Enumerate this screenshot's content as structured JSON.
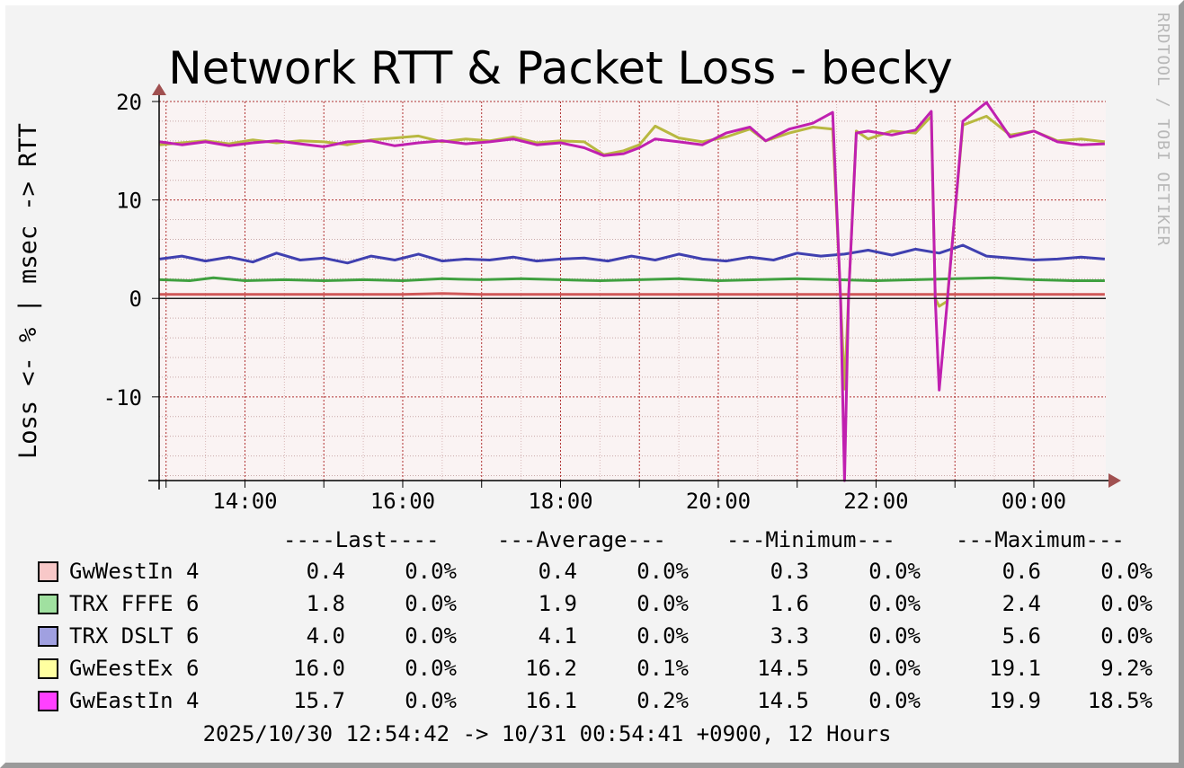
{
  "title": "Network RTT & Packet Loss - becky",
  "watermark": "RRDTOOL / TOBI OETIKER",
  "ylabel": "Loss <- % | msec -> RTT",
  "footer": "2025/10/30 12:54:42 -> 10/31 00:54:41 +0900, 12 Hours",
  "colors": {
    "background": "#f3f3f3",
    "plot_background": "#faf3f3",
    "grid": "#b03030",
    "axis": "#000000",
    "arrow": "#a05050"
  },
  "legend": {
    "headers": [
      "----Last----",
      "---Average---",
      "---Minimum---",
      "---Maximum---"
    ],
    "rows": [
      {
        "name": "GwWestIn 4",
        "swatch": "#f8c8c8",
        "last_rtt": "0.4",
        "last_loss": "0.0%",
        "avg_rtt": "0.4",
        "avg_loss": "0.0%",
        "min_rtt": "0.3",
        "min_loss": "0.0%",
        "max_rtt": "0.6",
        "max_loss": "0.0%"
      },
      {
        "name": "TRX FFFE 6",
        "swatch": "#a0e0a0",
        "last_rtt": "1.8",
        "last_loss": "0.0%",
        "avg_rtt": "1.9",
        "avg_loss": "0.0%",
        "min_rtt": "1.6",
        "min_loss": "0.0%",
        "max_rtt": "2.4",
        "max_loss": "0.0%"
      },
      {
        "name": "TRX DSLT 6",
        "swatch": "#a0a0e0",
        "last_rtt": "4.0",
        "last_loss": "0.0%",
        "avg_rtt": "4.1",
        "avg_loss": "0.0%",
        "min_rtt": "3.3",
        "min_loss": "0.0%",
        "max_rtt": "5.6",
        "max_loss": "0.0%"
      },
      {
        "name": "GwEestEx 6",
        "swatch": "#ffffa0",
        "last_rtt": "16.0",
        "last_loss": "0.0%",
        "avg_rtt": "16.2",
        "avg_loss": "0.1%",
        "min_rtt": "14.5",
        "min_loss": "0.0%",
        "max_rtt": "19.1",
        "max_loss": "9.2%"
      },
      {
        "name": "GwEastIn 4",
        "swatch": "#ff40ff",
        "last_rtt": "15.7",
        "last_loss": "0.0%",
        "avg_rtt": "16.1",
        "avg_loss": "0.2%",
        "min_rtt": "14.5",
        "min_loss": "0.0%",
        "max_rtt": "19.9",
        "max_loss": "18.5%"
      }
    ]
  },
  "chart_data": {
    "type": "line",
    "title": "Network RTT & Packet Loss - becky",
    "ylabel": "Loss <- % | msec -> RTT",
    "xlabel": "",
    "ylim": [
      -18.5,
      20
    ],
    "yticks": [
      20,
      10,
      0,
      -10
    ],
    "xlim": [
      12.912,
      24.912
    ],
    "xticks": [
      {
        "x": 14,
        "label": "14:00"
      },
      {
        "x": 16,
        "label": "16:00"
      },
      {
        "x": 18,
        "label": "18:00"
      },
      {
        "x": 20,
        "label": "20:00"
      },
      {
        "x": 22,
        "label": "22:00"
      },
      {
        "x": 24,
        "label": "00:00"
      }
    ],
    "grid": true,
    "series": [
      {
        "name": "GwWestIn 4",
        "color": "#d05858",
        "x": [
          12.92,
          14.0,
          15.0,
          16.0,
          16.5,
          17.0,
          18.0,
          19.0,
          20.0,
          21.0,
          22.0,
          23.0,
          24.0,
          24.9
        ],
        "y": [
          0.4,
          0.4,
          0.4,
          0.4,
          0.5,
          0.4,
          0.4,
          0.4,
          0.4,
          0.4,
          0.4,
          0.4,
          0.4,
          0.4
        ]
      },
      {
        "name": "TRX FFFE 6",
        "color": "#40a040",
        "x": [
          12.92,
          13.3,
          13.6,
          14.0,
          14.5,
          15.0,
          15.5,
          16.0,
          16.5,
          17.0,
          17.5,
          18.0,
          18.5,
          19.0,
          19.5,
          20.0,
          20.5,
          21.0,
          21.5,
          22.0,
          22.5,
          23.0,
          23.5,
          24.0,
          24.5,
          24.9
        ],
        "y": [
          1.9,
          1.8,
          2.1,
          1.8,
          1.9,
          1.8,
          1.9,
          1.8,
          2.0,
          1.9,
          2.0,
          1.9,
          1.8,
          1.9,
          2.0,
          1.8,
          1.9,
          2.0,
          1.9,
          1.8,
          1.9,
          2.0,
          2.1,
          1.9,
          1.8,
          1.8
        ]
      },
      {
        "name": "TRX DSLT 6",
        "color": "#4040b0",
        "x": [
          12.92,
          13.2,
          13.5,
          13.8,
          14.1,
          14.4,
          14.7,
          15.0,
          15.3,
          15.6,
          15.9,
          16.2,
          16.5,
          16.8,
          17.1,
          17.4,
          17.7,
          18.0,
          18.3,
          18.6,
          18.9,
          19.2,
          19.5,
          19.8,
          20.1,
          20.4,
          20.7,
          21.0,
          21.3,
          21.6,
          21.9,
          22.2,
          22.5,
          22.8,
          23.1,
          23.4,
          23.7,
          24.0,
          24.3,
          24.6,
          24.9
        ],
        "y": [
          4.0,
          4.3,
          3.8,
          4.2,
          3.7,
          4.6,
          3.9,
          4.1,
          3.6,
          4.3,
          3.9,
          4.5,
          3.8,
          4.0,
          3.9,
          4.2,
          3.8,
          4.0,
          4.1,
          3.8,
          4.3,
          3.9,
          4.5,
          4.0,
          3.8,
          4.2,
          3.9,
          4.6,
          4.3,
          4.5,
          4.9,
          4.4,
          5.0,
          4.6,
          5.4,
          4.3,
          4.1,
          3.9,
          4.0,
          4.2,
          4.0
        ]
      },
      {
        "name": "GwEestEx 6",
        "color": "#b8b840",
        "x": [
          12.92,
          13.2,
          13.5,
          13.8,
          14.1,
          14.4,
          14.7,
          15.0,
          15.3,
          15.6,
          15.9,
          16.2,
          16.5,
          16.8,
          17.1,
          17.4,
          17.7,
          18.0,
          18.3,
          18.55,
          18.8,
          19.0,
          19.2,
          19.5,
          19.8,
          20.1,
          20.4,
          20.6,
          20.9,
          21.2,
          21.45,
          21.55,
          21.6,
          21.65,
          21.75,
          21.9,
          22.2,
          22.5,
          22.7,
          22.75,
          22.8,
          22.9,
          23.1,
          23.4,
          23.7,
          24.0,
          24.3,
          24.6,
          24.9
        ],
        "y": [
          15.6,
          15.8,
          16.0,
          15.7,
          16.1,
          15.8,
          16.0,
          15.9,
          15.6,
          16.1,
          16.3,
          16.5,
          15.9,
          16.2,
          16.0,
          16.4,
          15.8,
          16.0,
          15.9,
          14.6,
          15.0,
          15.6,
          17.5,
          16.3,
          15.9,
          16.4,
          17.2,
          16.0,
          16.8,
          17.4,
          17.2,
          0,
          -9.2,
          0,
          17.0,
          16.2,
          17.0,
          16.8,
          18.5,
          0,
          -0.8,
          -0.3,
          17.6,
          18.5,
          16.6,
          17.0,
          16.0,
          16.2,
          15.9
        ]
      },
      {
        "name": "GwEastIn 4",
        "color": "#c020b0",
        "x": [
          12.92,
          13.2,
          13.5,
          13.8,
          14.1,
          14.4,
          14.7,
          15.0,
          15.3,
          15.6,
          15.9,
          16.2,
          16.5,
          16.8,
          17.1,
          17.4,
          17.7,
          18.0,
          18.3,
          18.55,
          18.8,
          19.0,
          19.2,
          19.5,
          19.8,
          20.1,
          20.4,
          20.6,
          20.9,
          21.2,
          21.45,
          21.55,
          21.6,
          21.65,
          21.75,
          21.9,
          22.2,
          22.5,
          22.7,
          22.75,
          22.8,
          22.9,
          23.1,
          23.4,
          23.7,
          24.0,
          24.3,
          24.6,
          24.9
        ],
        "y": [
          15.9,
          15.6,
          15.9,
          15.5,
          15.8,
          16.0,
          15.7,
          15.4,
          15.9,
          16.0,
          15.5,
          15.8,
          16.0,
          15.7,
          15.9,
          16.2,
          15.6,
          15.8,
          15.3,
          14.5,
          14.7,
          15.3,
          16.2,
          15.9,
          15.6,
          16.8,
          17.4,
          16.0,
          17.2,
          17.8,
          18.9,
          0,
          -18.5,
          0,
          16.8,
          17.0,
          16.6,
          17.1,
          19.0,
          0,
          -9.3,
          -0.6,
          18.0,
          19.9,
          16.4,
          17.0,
          15.9,
          15.6,
          15.7
        ]
      }
    ]
  }
}
